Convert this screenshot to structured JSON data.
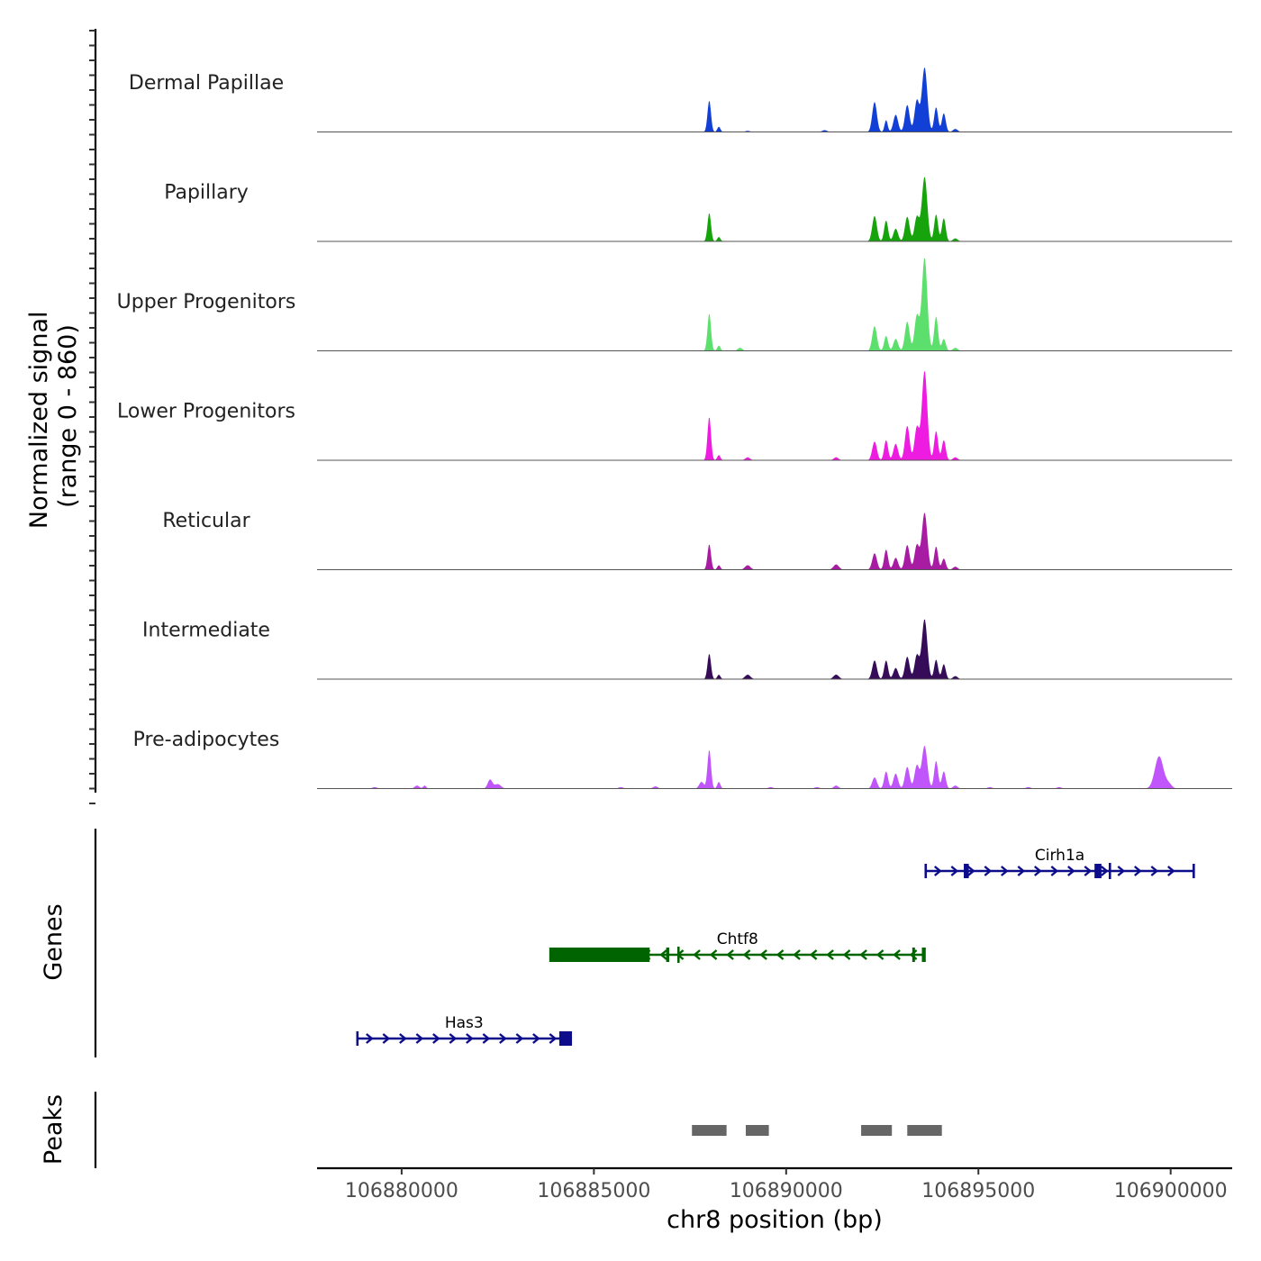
{
  "chart_data": {
    "type": "area",
    "chromosome": "chr8",
    "xlabel": "chr8 position (bp)",
    "xlim": [
      106877800,
      106901600
    ],
    "x_ticks": [
      106880000,
      106885000,
      106890000,
      106895000,
      106900000
    ],
    "x_tick_labels": [
      "106880000",
      "106885000",
      "106890000",
      "106895000",
      "106900000"
    ],
    "coverage": {
      "ylabel_line1": "Normalized signal",
      "ylabel_line2": "(range 0 - 860)",
      "ylim": [
        0,
        860
      ],
      "series": [
        {
          "name": "Dermal Papillae",
          "color": "#1240d6",
          "peaks": [
            [
              106888000,
              420,
              45
            ],
            [
              106888250,
              70,
              40
            ],
            [
              106892300,
              400,
              60
            ],
            [
              106892600,
              160,
              40
            ],
            [
              106892850,
              230,
              60
            ],
            [
              106893150,
              360,
              60
            ],
            [
              106893400,
              420,
              60
            ],
            [
              106893600,
              860,
              70
            ],
            [
              106893900,
              330,
              50
            ],
            [
              106894100,
              250,
              50
            ],
            [
              106894400,
              40,
              60
            ],
            [
              106891000,
              25,
              60
            ],
            [
              106889000,
              15,
              60
            ]
          ]
        },
        {
          "name": "Papillary",
          "color": "#16a30c",
          "peaks": [
            [
              106888000,
              380,
              45
            ],
            [
              106888250,
              60,
              40
            ],
            [
              106892300,
              340,
              60
            ],
            [
              106892600,
              280,
              50
            ],
            [
              106892850,
              170,
              60
            ],
            [
              106893150,
              330,
              60
            ],
            [
              106893400,
              330,
              60
            ],
            [
              106893600,
              860,
              70
            ],
            [
              106893900,
              360,
              50
            ],
            [
              106894100,
              310,
              50
            ],
            [
              106894400,
              40,
              60
            ]
          ]
        },
        {
          "name": "Upper Progenitors",
          "color": "#5cdf6c",
          "peaks": [
            [
              106888000,
              500,
              45
            ],
            [
              106888250,
              70,
              40
            ],
            [
              106888800,
              40,
              60
            ],
            [
              106892300,
              330,
              60
            ],
            [
              106892600,
              200,
              50
            ],
            [
              106892850,
              160,
              60
            ],
            [
              106893150,
              390,
              60
            ],
            [
              106893400,
              470,
              60
            ],
            [
              106893600,
              1240,
              70
            ],
            [
              106893900,
              460,
              50
            ],
            [
              106894100,
              160,
              50
            ],
            [
              106894400,
              40,
              60
            ]
          ]
        },
        {
          "name": "Lower Progenitors",
          "color": "#ee1be0",
          "peaks": [
            [
              106888000,
              580,
              45
            ],
            [
              106888250,
              70,
              40
            ],
            [
              106889000,
              40,
              60
            ],
            [
              106891300,
              40,
              60
            ],
            [
              106892300,
              250,
              60
            ],
            [
              106892600,
              270,
              50
            ],
            [
              106892850,
              220,
              60
            ],
            [
              106893150,
              460,
              60
            ],
            [
              106893400,
              440,
              60
            ],
            [
              106893600,
              1190,
              70
            ],
            [
              106893900,
              390,
              50
            ],
            [
              106894100,
              270,
              50
            ],
            [
              106894400,
              40,
              60
            ]
          ]
        },
        {
          "name": "Reticular",
          "color": "#a81ca4",
          "peaks": [
            [
              106888000,
              340,
              45
            ],
            [
              106888250,
              60,
              40
            ],
            [
              106889000,
              60,
              70
            ],
            [
              106891300,
              70,
              70
            ],
            [
              106892300,
              220,
              60
            ],
            [
              106892600,
              270,
              50
            ],
            [
              106892850,
              160,
              60
            ],
            [
              106893150,
              330,
              60
            ],
            [
              106893400,
              330,
              60
            ],
            [
              106893600,
              760,
              70
            ],
            [
              106893900,
              310,
              50
            ],
            [
              106894100,
              150,
              50
            ],
            [
              106894400,
              40,
              60
            ]
          ]
        },
        {
          "name": "Intermediate",
          "color": "#360c59",
          "peaks": [
            [
              106888000,
              340,
              45
            ],
            [
              106888250,
              60,
              40
            ],
            [
              106889000,
              60,
              70
            ],
            [
              106891300,
              60,
              70
            ],
            [
              106892300,
              250,
              60
            ],
            [
              106892600,
              250,
              50
            ],
            [
              106892850,
              150,
              60
            ],
            [
              106893150,
              300,
              60
            ],
            [
              106893400,
              320,
              60
            ],
            [
              106893600,
              800,
              70
            ],
            [
              106893900,
              260,
              50
            ],
            [
              106894100,
              200,
              50
            ],
            [
              106894400,
              40,
              60
            ]
          ]
        },
        {
          "name": "Pre-adipocytes",
          "color": "#bf55fb",
          "peaks": [
            [
              106879300,
              20,
              60
            ],
            [
              106880400,
              40,
              60
            ],
            [
              106880600,
              40,
              40
            ],
            [
              106882300,
              120,
              60
            ],
            [
              106882500,
              60,
              80
            ],
            [
              106885700,
              20,
              60
            ],
            [
              106886600,
              30,
              60
            ],
            [
              106887800,
              90,
              60
            ],
            [
              106888000,
              520,
              45
            ],
            [
              106888250,
              90,
              40
            ],
            [
              106889600,
              20,
              60
            ],
            [
              106890800,
              20,
              60
            ],
            [
              106891300,
              40,
              60
            ],
            [
              106892300,
              150,
              60
            ],
            [
              106892600,
              230,
              50
            ],
            [
              106892850,
              200,
              60
            ],
            [
              106893150,
              290,
              60
            ],
            [
              106893400,
              310,
              60
            ],
            [
              106893600,
              570,
              70
            ],
            [
              106893900,
              370,
              50
            ],
            [
              106894100,
              230,
              50
            ],
            [
              106894400,
              40,
              60
            ],
            [
              106895300,
              20,
              60
            ],
            [
              106896300,
              20,
              60
            ],
            [
              106897100,
              20,
              60
            ],
            [
              106899700,
              430,
              110
            ],
            [
              106899950,
              60,
              80
            ]
          ]
        }
      ]
    },
    "genes": {
      "ylabel": "Genes",
      "items": [
        {
          "name": "Cirh1a",
          "strand": "+",
          "start": 106893630,
          "end": 106900600,
          "color": "#0d0d8c",
          "thick": [
            [
              106894620,
              106894750
            ],
            [
              106898020,
              106898200
            ]
          ],
          "marks": [
            106898420
          ]
        },
        {
          "name": "Chtf8",
          "strand": "-",
          "start": 106883870,
          "end": 106893600,
          "color": "#006400",
          "thick": [
            [
              106883870,
              106886450
            ],
            [
              106886880,
              106886960
            ],
            [
              106893280,
              106893340
            ],
            [
              106893530,
              106893600
            ]
          ],
          "marks": [
            106887200
          ]
        },
        {
          "name": "Has3",
          "strand": "+",
          "start": 106878850,
          "end": 106884400,
          "color": "#0d0d8c",
          "thick": [
            [
              106884100,
              106884420
            ]
          ],
          "marks": []
        }
      ]
    },
    "peaks": {
      "ylabel": "Peaks",
      "color": "#666666",
      "regions": [
        [
          106887550,
          106888450
        ],
        [
          106888950,
          106889550
        ],
        [
          106891950,
          106892750
        ],
        [
          106893150,
          106894050
        ]
      ]
    }
  }
}
